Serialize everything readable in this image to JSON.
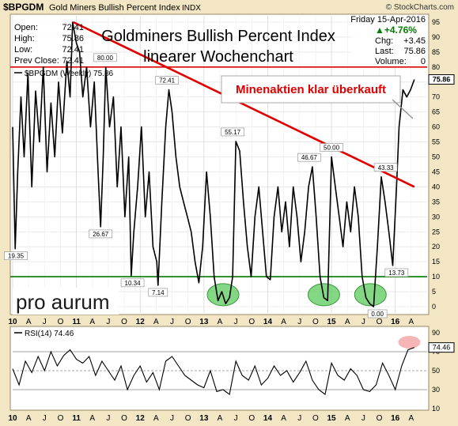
{
  "header": {
    "symbol": "$BPGDM",
    "name": "Gold Miners Bullish Percent Index",
    "exchange": "INDX",
    "source": "© StockCharts.com",
    "date": "Friday 15-Apr-2016",
    "change_pct": "▲+4.76%",
    "stats_left": [
      {
        "label": "Open:",
        "value": "72.41"
      },
      {
        "label": "High:",
        "value": "75.86"
      },
      {
        "label": "Low:",
        "value": "72.41"
      },
      {
        "label": "Prev Close:",
        "value": "72.41"
      }
    ],
    "stats_right": [
      {
        "label": "Chg:",
        "value": "+3.45"
      },
      {
        "label": "Last:",
        "value": "75.86"
      },
      {
        "label": "Volume:",
        "value": "0"
      }
    ]
  },
  "overlay": {
    "title_line1": "Goldminers Bullish Percent Index",
    "title_line2": "linearer Wochenchart",
    "callout": "Minenaktien klar überkauft",
    "logo": "pro aurum"
  },
  "chart_data": [
    {
      "type": "line",
      "legend": "$BPGDM (Weekly) 75.86",
      "last_value_label": "75.86",
      "ylim": [
        0,
        95
      ],
      "y_ticks": [
        0,
        5,
        10,
        15,
        20,
        25,
        30,
        35,
        40,
        45,
        50,
        55,
        60,
        65,
        70,
        75,
        80,
        85,
        90,
        95
      ],
      "x_tick_labels": [
        "10",
        "A",
        "J",
        "O",
        "11",
        "A",
        "J",
        "O",
        "12",
        "A",
        "J",
        "O",
        "13",
        "A",
        "J",
        "O",
        "14",
        "A",
        "J",
        "O",
        "15",
        "A",
        "J",
        "O",
        "16",
        "A"
      ],
      "x_year_labels": [
        "10",
        "11",
        "12",
        "13",
        "14",
        "15",
        "16"
      ],
      "x_start_year": 2010.0,
      "x_end_year": 2016.5,
      "reference_lines": [
        {
          "value": 80,
          "color": "#e00000"
        },
        {
          "value": 10,
          "color": "#007a00"
        }
      ],
      "trendline": {
        "from": [
          2010.95,
          95
        ],
        "to": [
          2016.3,
          40
        ],
        "color": "#e00000"
      },
      "annotations": [
        {
          "x": 2010.05,
          "y": 19.35,
          "label": "19.35"
        },
        {
          "x": 2011.45,
          "y": 80.0,
          "label": "80.00"
        },
        {
          "x": 2011.38,
          "y": 26.67,
          "label": "26.67"
        },
        {
          "x": 2011.88,
          "y": 10.34,
          "label": "10.34"
        },
        {
          "x": 2012.28,
          "y": 7.14,
          "label": "7.14"
        },
        {
          "x": 2012.42,
          "y": 72.41,
          "label": "72.41"
        },
        {
          "x": 2013.45,
          "y": 55.17,
          "label": "55.17"
        },
        {
          "x": 2014.65,
          "y": 46.67,
          "label": "46.67"
        },
        {
          "x": 2015.0,
          "y": 50.0,
          "label": "50.00"
        },
        {
          "x": 2015.72,
          "y": 0.0,
          "label": "0.00"
        },
        {
          "x": 2015.85,
          "y": 43.33,
          "label": "43.33"
        },
        {
          "x": 2016.02,
          "y": 13.73,
          "label": "13.73"
        }
      ],
      "highlights": [
        {
          "x": 2013.3,
          "y": 4
        },
        {
          "x": 2014.88,
          "y": 4
        },
        {
          "x": 2015.61,
          "y": 4
        }
      ],
      "series": [
        {
          "x": [
            2010.0,
            2010.04,
            2010.08,
            2010.13,
            2010.18,
            2010.24,
            2010.3,
            2010.36,
            2010.42,
            2010.48,
            2010.54,
            2010.6,
            2010.66,
            2010.72,
            2010.78,
            2010.85,
            2010.9,
            2010.94,
            2011.0,
            2011.05,
            2011.1,
            2011.16,
            2011.22,
            2011.28,
            2011.34,
            2011.38,
            2011.42,
            2011.46,
            2011.52,
            2011.58,
            2011.64,
            2011.7,
            2011.76,
            2011.82,
            2011.86,
            2011.9,
            2011.96,
            2012.02,
            2012.08,
            2012.14,
            2012.2,
            2012.26,
            2012.28,
            2012.34,
            2012.4,
            2012.45,
            2012.5,
            2012.56,
            2012.62,
            2012.68,
            2012.74,
            2012.8,
            2012.86,
            2012.92,
            2012.98,
            2013.04,
            2013.1,
            2013.16,
            2013.22,
            2013.28,
            2013.34,
            2013.4,
            2013.45,
            2013.5,
            2013.56,
            2013.62,
            2013.68,
            2013.74,
            2013.8,
            2013.86,
            2013.92,
            2013.98,
            2014.04,
            2014.1,
            2014.16,
            2014.22,
            2014.28,
            2014.34,
            2014.4,
            2014.46,
            2014.52,
            2014.58,
            2014.64,
            2014.7,
            2014.76,
            2014.82,
            2014.88,
            2014.94,
            2015.0,
            2015.06,
            2015.12,
            2015.18,
            2015.24,
            2015.3,
            2015.36,
            2015.42,
            2015.48,
            2015.54,
            2015.6,
            2015.66,
            2015.72,
            2015.78,
            2015.84,
            2015.9,
            2015.96,
            2016.02,
            2016.06,
            2016.12,
            2016.18,
            2016.24,
            2016.3
          ],
          "y": [
            60,
            19.35,
            45,
            70,
            50,
            78,
            40,
            72,
            55,
            80,
            45,
            68,
            50,
            75,
            58,
            82,
            70,
            95,
            88,
            85,
            70,
            80,
            60,
            75,
            45,
            26.67,
            50,
            80,
            60,
            70,
            40,
            60,
            30,
            50,
            10.34,
            25,
            40,
            60,
            30,
            45,
            20,
            15,
            7.14,
            35,
            60,
            72.41,
            65,
            50,
            40,
            35,
            30,
            25,
            15,
            8,
            20,
            45,
            30,
            10,
            2,
            5,
            1,
            3,
            10,
            55.17,
            52,
            35,
            20,
            10,
            30,
            40,
            25,
            10,
            9,
            30,
            40,
            25,
            35,
            20,
            40,
            30,
            15,
            25,
            40,
            46.67,
            30,
            10,
            3,
            2,
            50.0,
            40,
            30,
            20,
            35,
            25,
            40,
            30,
            10,
            3,
            1,
            0.0,
            20,
            43.33,
            35,
            25,
            13.73,
            40,
            60,
            72.41,
            70,
            72.41,
            75.86
          ]
        }
      ]
    },
    {
      "type": "line",
      "legend": "RSI(14) 74.46",
      "last_value_label": "74.46",
      "ylim": [
        10,
        95
      ],
      "y_ticks": [
        10,
        30,
        50,
        70,
        90
      ],
      "reference_lines": [
        {
          "value": 70,
          "color": "#888888"
        },
        {
          "value": 50,
          "color": "#888888"
        },
        {
          "value": 30,
          "color": "#888888"
        }
      ],
      "highlight": {
        "x": 2016.22,
        "y": 80
      },
      "series": [
        {
          "x": [
            2010.0,
            2010.1,
            2010.2,
            2010.3,
            2010.4,
            2010.5,
            2010.6,
            2010.7,
            2010.8,
            2010.9,
            2011.0,
            2011.1,
            2011.2,
            2011.3,
            2011.4,
            2011.5,
            2011.6,
            2011.7,
            2011.8,
            2011.9,
            2012.0,
            2012.1,
            2012.2,
            2012.3,
            2012.4,
            2012.5,
            2012.6,
            2012.7,
            2012.8,
            2012.9,
            2013.0,
            2013.1,
            2013.2,
            2013.3,
            2013.4,
            2013.5,
            2013.6,
            2013.7,
            2013.8,
            2013.9,
            2014.0,
            2014.1,
            2014.2,
            2014.3,
            2014.4,
            2014.5,
            2014.6,
            2014.7,
            2014.8,
            2014.9,
            2015.0,
            2015.1,
            2015.2,
            2015.3,
            2015.4,
            2015.5,
            2015.6,
            2015.7,
            2015.8,
            2015.9,
            2016.0,
            2016.1,
            2016.2,
            2016.3
          ],
          "y": [
            52,
            35,
            60,
            48,
            65,
            50,
            70,
            55,
            66,
            72,
            62,
            58,
            65,
            45,
            60,
            50,
            40,
            55,
            30,
            45,
            55,
            38,
            48,
            30,
            60,
            65,
            55,
            45,
            40,
            35,
            32,
            50,
            28,
            30,
            25,
            60,
            45,
            40,
            55,
            35,
            42,
            55,
            45,
            50,
            38,
            48,
            60,
            40,
            30,
            25,
            58,
            45,
            40,
            52,
            45,
            30,
            28,
            35,
            58,
            45,
            30,
            55,
            72,
            74.46
          ]
        }
      ]
    }
  ]
}
